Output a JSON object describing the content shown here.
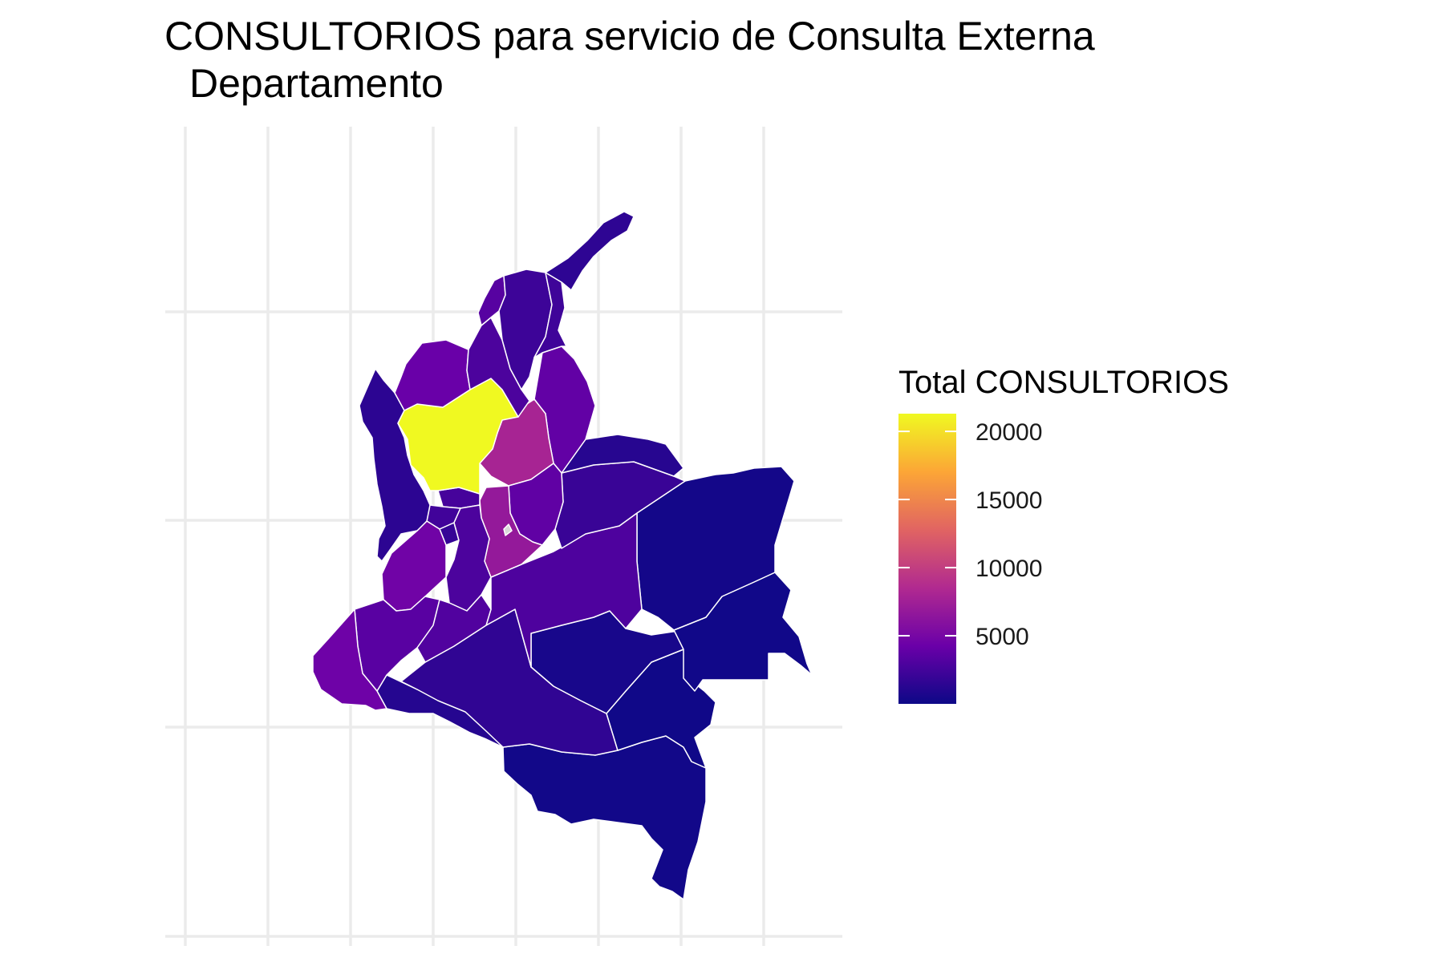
{
  "title": {
    "line1": "CONSULTORIOS para servicio de Consulta Externa",
    "line2": "Departamento"
  },
  "legend": {
    "title": "Total CONSULTORIOS",
    "ticks": [
      "20000",
      "15000",
      "10000",
      "5000"
    ],
    "tick_values": [
      20000,
      15000,
      10000,
      5000
    ],
    "scale_min": 0,
    "scale_max": 21300,
    "palette": [
      "#0d0887",
      "#6a00a8",
      "#b12a90",
      "#e16462",
      "#fca636",
      "#f0f921"
    ]
  },
  "map": {
    "grid": true,
    "missing_color": "#d9d9d9",
    "regions": [
      {
        "id": "antioquia",
        "value": 21300
      },
      {
        "id": "cordoba",
        "value": 4200
      },
      {
        "id": "choco",
        "value": 1400
      },
      {
        "id": "la-guajira",
        "value": 1500
      },
      {
        "id": "magdalena",
        "value": 2200
      },
      {
        "id": "atlantico",
        "value": 3400
      },
      {
        "id": "bolivar",
        "value": 2900
      },
      {
        "id": "cesar",
        "value": 2300
      },
      {
        "id": "norte-de-santander",
        "value": 3900
      },
      {
        "id": "santander",
        "value": 7900
      },
      {
        "id": "boyaca",
        "value": 3800
      },
      {
        "id": "cundinamarca",
        "value": 6800
      },
      {
        "id": "caldas",
        "value": 2600
      },
      {
        "id": "risaralda",
        "value": 2400
      },
      {
        "id": "quindio",
        "value": 1900
      },
      {
        "id": "tolima",
        "value": 2900
      },
      {
        "id": "valle-del-cauca",
        "value": 4600
      },
      {
        "id": "cauca",
        "value": 3500
      },
      {
        "id": "huila",
        "value": 3100
      },
      {
        "id": "narino",
        "value": 4500
      },
      {
        "id": "putumayo",
        "value": 1100
      },
      {
        "id": "caqueta",
        "value": 1600
      },
      {
        "id": "meta",
        "value": 3000
      },
      {
        "id": "arauca",
        "value": 1200
      },
      {
        "id": "casanare",
        "value": 2000
      },
      {
        "id": "vichada",
        "value": 300
      },
      {
        "id": "guaviare",
        "value": 500
      },
      {
        "id": "guainia",
        "value": 200
      },
      {
        "id": "vaupes",
        "value": 150
      },
      {
        "id": "amazonas",
        "value": 250
      },
      {
        "id": "bogota",
        "value": null
      }
    ]
  }
}
